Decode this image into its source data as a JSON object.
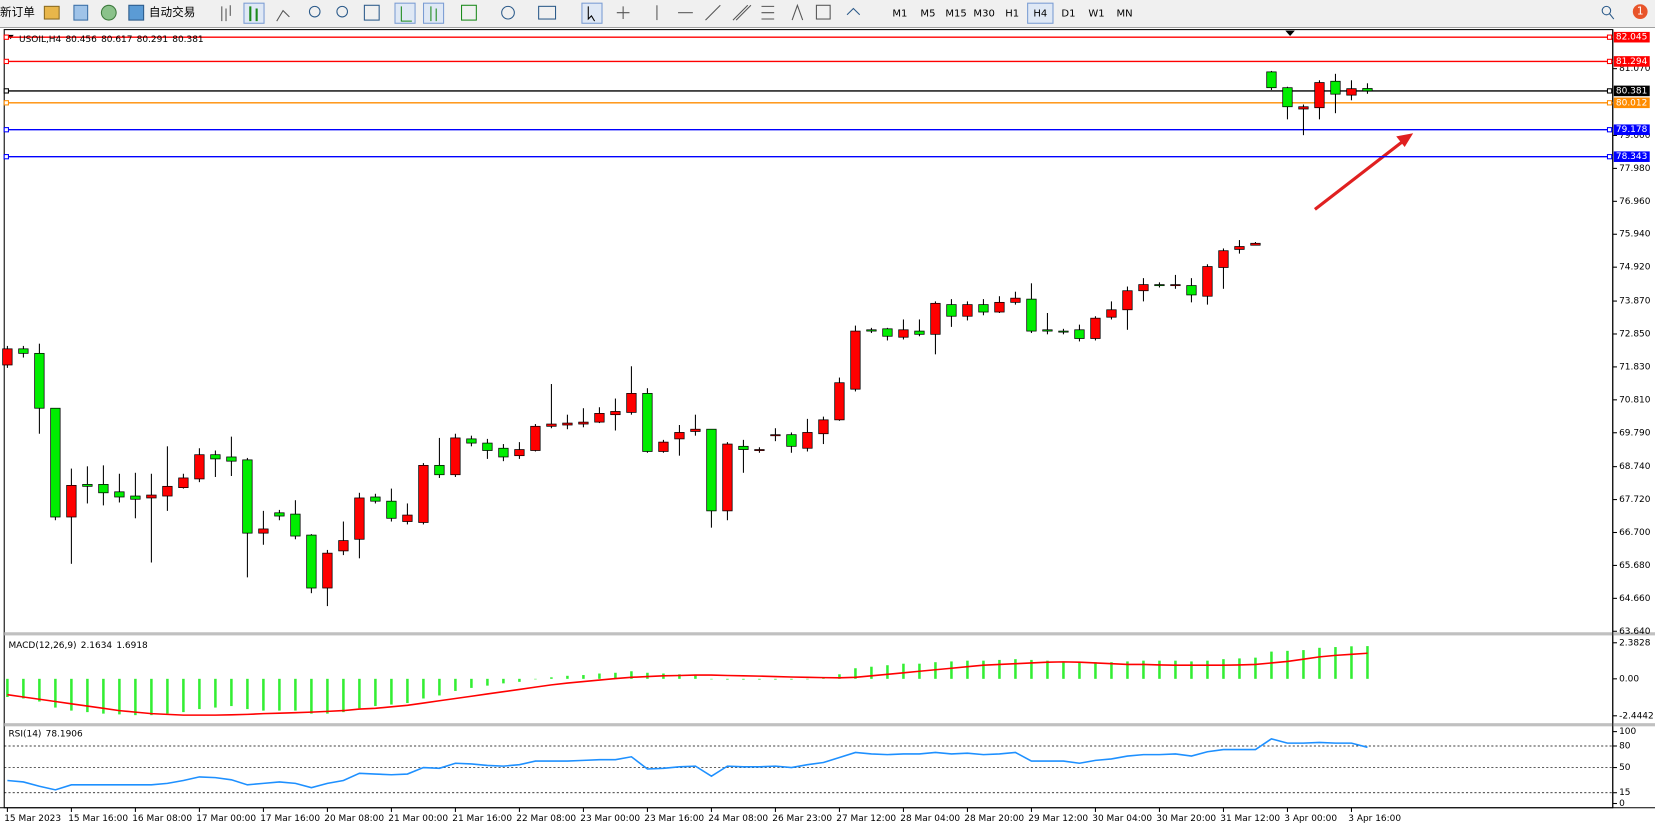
{
  "toolbar": {
    "new_order": "新订单",
    "auto_trading": "自动交易",
    "timeframes": [
      "M1",
      "M5",
      "M15",
      "M30",
      "H1",
      "H4",
      "D1",
      "W1",
      "MN"
    ],
    "active_timeframe": "H4",
    "notifications": 1
  },
  "chart_data": [
    {
      "type": "candlestick",
      "symbol": "USOIL,H4",
      "up_color": "#ff0000",
      "down_color": "#00ee00",
      "categories": [
        "15 Mar 2023",
        null,
        null,
        null,
        "15 Mar 16:00",
        null,
        null,
        null,
        "16 Mar 08:00",
        null,
        null,
        null,
        "17 Mar 00:00",
        null,
        null,
        null,
        "17 Mar 16:00",
        null,
        null,
        null,
        "20 Mar 08:00",
        null,
        null,
        null,
        "21 Mar 00:00",
        null,
        null,
        null,
        "21 Mar 16:00",
        null,
        null,
        null,
        "22 Mar 08:00",
        null,
        null,
        null,
        "23 Mar 00:00",
        null,
        null,
        null,
        "23 Mar 16:00",
        null,
        null,
        null,
        "24 Mar 08:00",
        null,
        null,
        null,
        "26 Mar 23:00",
        null,
        null,
        null,
        "27 Mar 12:00",
        null,
        null,
        null,
        "28 Mar 04:00",
        null,
        null,
        null,
        "28 Mar 20:00",
        null,
        null,
        null,
        "29 Mar 12:00",
        null,
        null,
        null,
        "30 Mar 04:00",
        null,
        null,
        null,
        "30 Mar 20:00",
        null,
        null,
        null,
        "31 Mar 12:00",
        null,
        null,
        null,
        "3 Apr 00:00",
        null,
        null,
        null,
        "3 Apr 16:00",
        null
      ],
      "open": [
        71.89,
        72.39,
        72.25,
        70.55,
        67.18,
        68.19,
        68.19,
        67.96,
        67.83,
        67.77,
        67.83,
        68.09,
        68.36,
        69.11,
        69.04,
        68.95,
        66.68,
        67.31,
        67.27,
        66.62,
        64.98,
        66.13,
        66.49,
        67.8,
        67.67,
        67.04,
        67.01,
        68.78,
        68.49,
        69.6,
        69.47,
        69.31,
        69.08,
        69.24,
        69.99,
        70.03,
        70.06,
        70.12,
        70.35,
        70.42,
        71.01,
        69.21,
        69.6,
        69.83,
        69.9,
        67.37,
        69.37,
        69.24,
        69.73,
        69.73,
        69.31,
        69.76,
        70.19,
        71.14,
        72.98,
        73.01,
        72.75,
        72.94,
        72.84,
        73.76,
        73.4,
        73.76,
        73.53,
        73.83,
        73.93,
        72.98,
        72.94,
        72.98,
        72.71,
        73.37,
        73.6,
        74.19,
        74.38,
        74.35,
        74.35,
        74.02,
        74.91,
        75.47,
        75.6,
        80.97,
        80.48,
        79.82,
        79.86,
        80.68,
        80.25,
        80.456
      ],
      "high": [
        72.48,
        72.48,
        72.55,
        70.55,
        68.68,
        68.75,
        68.78,
        68.52,
        68.55,
        68.52,
        69.37,
        68.52,
        69.31,
        69.24,
        69.67,
        69.01,
        67.37,
        67.4,
        67.7,
        66.65,
        66.16,
        67.04,
        67.93,
        67.9,
        68.06,
        67.6,
        68.85,
        69.63,
        69.76,
        69.7,
        69.6,
        69.44,
        69.5,
        70.06,
        71.3,
        70.35,
        70.55,
        70.58,
        70.85,
        71.85,
        71.17,
        69.57,
        70.03,
        70.35,
        69.9,
        69.5,
        69.57,
        69.34,
        69.93,
        69.8,
        70.22,
        70.29,
        71.5,
        73.11,
        73.04,
        73.04,
        73.3,
        73.3,
        73.86,
        73.93,
        73.86,
        73.93,
        74.02,
        74.16,
        74.42,
        73.5,
        73.01,
        73.14,
        73.4,
        73.86,
        74.32,
        74.58,
        74.45,
        74.68,
        74.58,
        75.01,
        75.5,
        75.76,
        75.7,
        81.0,
        80.51,
        79.96,
        80.71,
        80.91,
        80.71,
        80.617
      ],
      "low": [
        71.8,
        72.12,
        69.76,
        67.08,
        65.73,
        67.6,
        67.54,
        67.63,
        67.14,
        65.77,
        67.37,
        68.06,
        68.26,
        68.42,
        68.45,
        65.31,
        66.32,
        67.08,
        66.49,
        64.82,
        64.42,
        66.0,
        65.9,
        67.6,
        67.04,
        66.95,
        66.95,
        68.39,
        68.42,
        69.37,
        68.98,
        68.91,
        68.98,
        69.21,
        69.93,
        69.9,
        69.96,
        70.09,
        69.86,
        70.35,
        69.17,
        69.17,
        69.08,
        69.7,
        66.85,
        67.08,
        68.55,
        69.17,
        69.53,
        69.17,
        69.21,
        69.44,
        70.16,
        71.07,
        72.88,
        72.65,
        72.68,
        72.78,
        72.22,
        73.07,
        73.27,
        73.43,
        73.5,
        73.76,
        72.88,
        72.84,
        72.84,
        72.62,
        72.65,
        73.3,
        72.98,
        73.86,
        74.29,
        74.25,
        73.83,
        73.76,
        74.25,
        75.34,
        75.6,
        80.41,
        79.5,
        79.01,
        79.5,
        79.69,
        80.09,
        80.291
      ],
      "close": [
        72.39,
        72.25,
        70.55,
        67.18,
        68.16,
        68.13,
        67.93,
        67.8,
        67.73,
        67.86,
        68.13,
        68.39,
        69.11,
        68.98,
        68.91,
        66.68,
        66.81,
        67.21,
        66.59,
        64.98,
        66.06,
        66.45,
        67.77,
        67.67,
        67.14,
        67.24,
        68.78,
        68.49,
        69.63,
        69.47,
        69.24,
        69.04,
        69.27,
        69.99,
        70.06,
        70.09,
        70.12,
        70.39,
        70.45,
        71.01,
        69.21,
        69.5,
        69.8,
        69.9,
        67.37,
        69.44,
        69.27,
        69.27,
        69.73,
        69.37,
        69.8,
        70.19,
        71.34,
        72.94,
        72.94,
        72.78,
        72.98,
        72.84,
        73.8,
        73.4,
        73.76,
        73.53,
        73.83,
        73.96,
        72.94,
        72.94,
        72.91,
        72.71,
        73.34,
        73.6,
        74.19,
        74.38,
        74.35,
        74.38,
        74.06,
        74.94,
        75.43,
        75.56,
        75.66,
        80.48,
        79.89,
        79.89,
        80.64,
        80.28,
        80.45,
        80.381
      ],
      "ylim": [
        63.61,
        82.28
      ],
      "yticks": [
        {
          "value": 63.64,
          "label": "63.640"
        },
        {
          "value": 64.66,
          "label": "64.660"
        },
        {
          "value": 65.68,
          "label": "65.680"
        },
        {
          "value": 66.7,
          "label": "66.700"
        },
        {
          "value": 67.72,
          "label": "67.720"
        },
        {
          "value": 68.74,
          "label": "68.740"
        },
        {
          "value": 69.79,
          "label": "69.790"
        },
        {
          "value": 70.81,
          "label": "70.810"
        },
        {
          "value": 71.83,
          "label": "71.830"
        },
        {
          "value": 72.85,
          "label": "72.850"
        },
        {
          "value": 73.87,
          "label": "73.870"
        },
        {
          "value": 74.92,
          "label": "74.920"
        },
        {
          "value": 75.94,
          "label": "75.940"
        },
        {
          "value": 76.96,
          "label": "76.960"
        },
        {
          "value": 77.98,
          "label": "77.980"
        },
        {
          "value": 79,
          "label": "79.000"
        },
        {
          "value": 81.07,
          "label": "81.070"
        }
      ],
      "levels": [
        {
          "value": 82.045,
          "color": "#ff0000"
        },
        {
          "value": 81.294,
          "color": "#ff0000"
        },
        {
          "value": 80.381,
          "color": "#000000"
        },
        {
          "value": 80.012,
          "color": "#ff8c00"
        },
        {
          "value": 79.178,
          "color": "#0000ff"
        },
        {
          "value": 78.343,
          "color": "#0000ff"
        }
      ]
    },
    {
      "type": "macd",
      "title": "MACD(12,26,9)",
      "histogram": {
        "color": "#33ee33",
        "values": [
          -1.2,
          -1.3,
          -1.5,
          -1.9,
          -2.1,
          -2.2,
          -2.3,
          -2.35,
          -2.4,
          -2.4,
          -2.3,
          -2.2,
          -2.0,
          -1.9,
          -1.8,
          -2.0,
          -2.1,
          -2.1,
          -2.1,
          -2.3,
          -2.3,
          -2.2,
          -1.95,
          -1.8,
          -1.7,
          -1.6,
          -1.3,
          -1.1,
          -0.8,
          -0.6,
          -0.45,
          -0.3,
          -0.2,
          0.0,
          0.1,
          0.2,
          0.25,
          0.35,
          0.4,
          0.5,
          0.4,
          0.35,
          0.3,
          0.25,
          0.0,
          -0.05,
          -0.05,
          -0.05,
          -0.05,
          -0.05,
          0.0,
          0.05,
          0.3,
          0.7,
          0.8,
          0.9,
          1.0,
          1.0,
          1.1,
          1.15,
          1.2,
          1.2,
          1.25,
          1.3,
          1.25,
          1.2,
          1.15,
          1.1,
          1.1,
          1.1,
          1.15,
          1.2,
          1.2,
          1.2,
          1.15,
          1.2,
          1.3,
          1.35,
          1.4,
          1.8,
          1.85,
          1.9,
          2.05,
          2.1,
          2.15,
          2.1634
        ]
      },
      "signal": {
        "color": "#ff0000",
        "values": [
          -1.05,
          -1.2,
          -1.35,
          -1.5,
          -1.65,
          -1.8,
          -1.95,
          -2.1,
          -2.2,
          -2.3,
          -2.35,
          -2.4,
          -2.4,
          -2.4,
          -2.38,
          -2.35,
          -2.3,
          -2.27,
          -2.24,
          -2.2,
          -2.15,
          -2.1,
          -2.0,
          -1.95,
          -1.85,
          -1.75,
          -1.6,
          -1.45,
          -1.3,
          -1.15,
          -1.0,
          -0.85,
          -0.7,
          -0.55,
          -0.4,
          -0.28,
          -0.18,
          -0.08,
          0.02,
          0.1,
          0.15,
          0.2,
          0.22,
          0.25,
          0.25,
          0.22,
          0.2,
          0.18,
          0.15,
          0.12,
          0.1,
          0.08,
          0.07,
          0.1,
          0.2,
          0.3,
          0.4,
          0.5,
          0.6,
          0.7,
          0.8,
          0.9,
          0.95,
          1.0,
          1.05,
          1.1,
          1.12,
          1.1,
          1.05,
          1.0,
          0.95,
          0.95,
          0.92,
          0.9,
          0.9,
          0.9,
          0.9,
          0.92,
          0.95,
          1.05,
          1.15,
          1.3,
          1.45,
          1.55,
          1.62,
          1.6918
        ]
      },
      "ylim": [
        -2.93,
        2.8
      ],
      "yticks": [
        2.3828,
        {
          "value": 0,
          "label": "0.00"
        },
        -2.4442
      ]
    },
    {
      "type": "line",
      "title": "RSI(14)",
      "color": "#1e90ff",
      "values": [
        32,
        30,
        24,
        19,
        26,
        26,
        26,
        26,
        26,
        26,
        28,
        32,
        37,
        36,
        33,
        26,
        28,
        30,
        28,
        22,
        28,
        32,
        42,
        41,
        40,
        41,
        50,
        49,
        56,
        55,
        53,
        52,
        54,
        59,
        59,
        59,
        60,
        61,
        61,
        65,
        48,
        49,
        51,
        52,
        38,
        52,
        51,
        51,
        52,
        50,
        54,
        57,
        64,
        71,
        69,
        68,
        69,
        69,
        71,
        69,
        70,
        68,
        69,
        71,
        59,
        59,
        59,
        56,
        60,
        62,
        66,
        68,
        68,
        69,
        66,
        72,
        75,
        75,
        75,
        90,
        84,
        84,
        85,
        84,
        84,
        78.1906
      ],
      "ylim": [
        0,
        100
      ],
      "yticks": [
        100,
        80,
        50,
        15,
        0
      ],
      "levels": [
        80,
        50,
        15
      ]
    }
  ]
}
